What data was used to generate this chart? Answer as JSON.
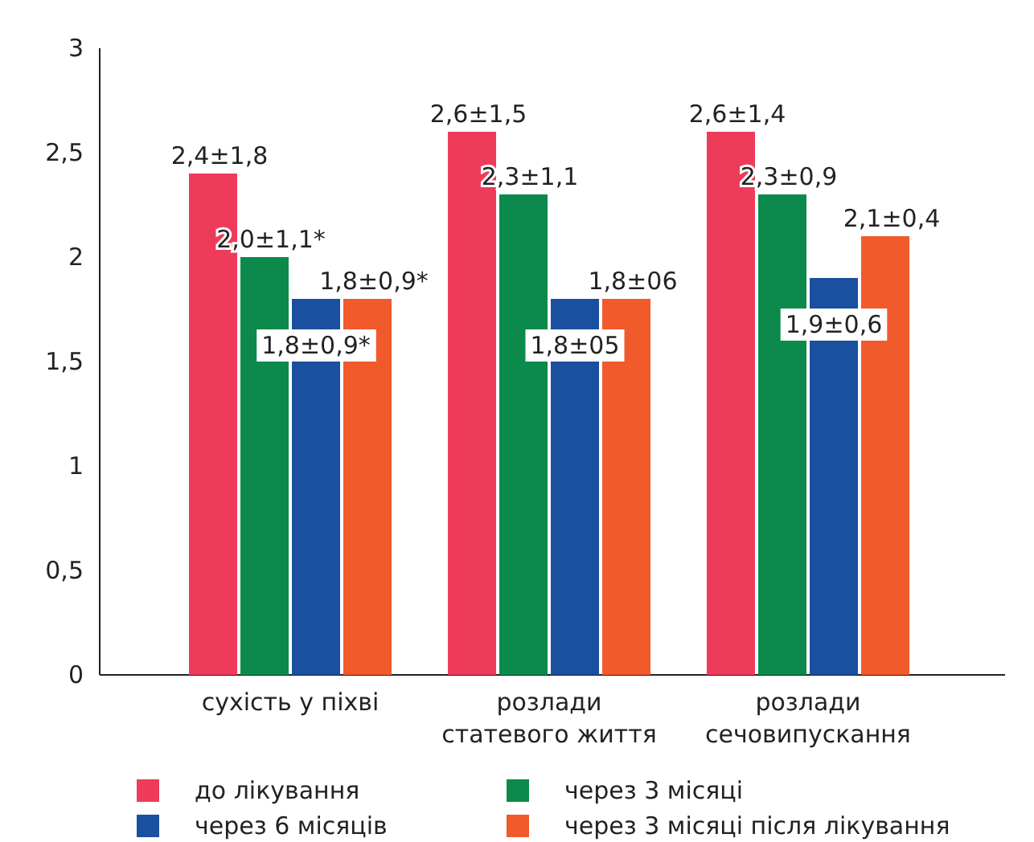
{
  "chart_data": {
    "type": "bar",
    "categories": [
      "сухість у піхві",
      "розлади\nстатевого життя",
      "розлади\nсечовипускання"
    ],
    "series": [
      {
        "name": "до лікування",
        "color": "#ef3b5a",
        "values": [
          2.4,
          2.6,
          2.6
        ],
        "value_labels": [
          "2,4±1,8",
          "2,6±1,5",
          "2,6±1,4"
        ]
      },
      {
        "name": "через 3 місяці",
        "color": "#0b8a4b",
        "values": [
          2.0,
          2.3,
          2.3
        ],
        "value_labels": [
          "2,0±1,1*",
          "2,3±1,1",
          "2,3±0,9"
        ]
      },
      {
        "name": "через 6 місяців",
        "color": "#1b4f9f",
        "values": [
          1.8,
          1.8,
          1.9
        ],
        "value_labels": [
          "1,8±0,9*",
          "1,8±05",
          "1,9±0,6"
        ]
      },
      {
        "name": "через 3 місяці після лікування",
        "color": "#f15a2b",
        "values": [
          1.8,
          1.8,
          2.1
        ],
        "value_labels": [
          "1,8±0,9*",
          "1,8±06",
          "2,1±0,4"
        ]
      }
    ],
    "ylim": [
      0,
      3
    ],
    "yticks": [
      0,
      {
        "value": 0.5,
        "label": "0,5"
      },
      1,
      {
        "value": 1.5,
        "label": "1,5"
      },
      2,
      {
        "value": 2.5,
        "label": "2,5"
      },
      3
    ],
    "grid": false,
    "legend": "bottom"
  }
}
